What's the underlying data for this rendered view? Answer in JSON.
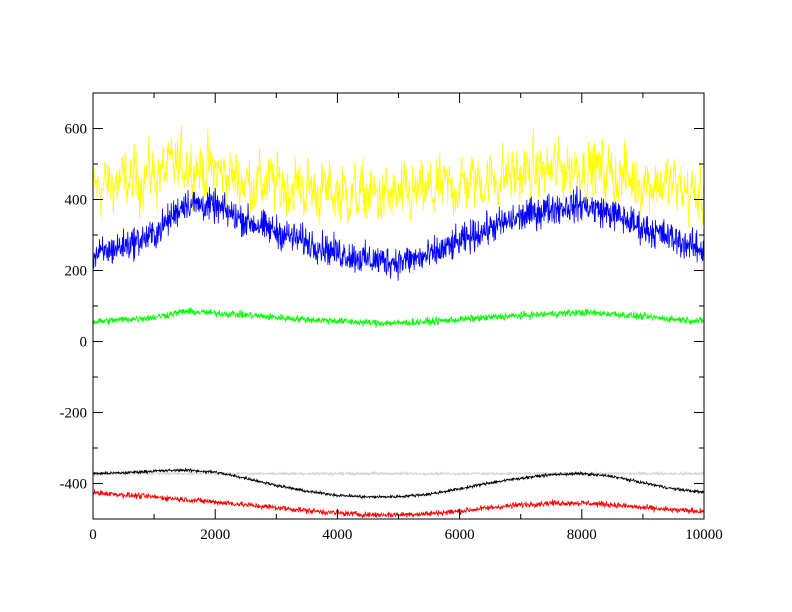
{
  "chart_data": {
    "type": "line",
    "title": "",
    "xlabel": "",
    "ylabel": "",
    "xlim": [
      0,
      10000
    ],
    "ylim": [
      -500,
      700
    ],
    "grid": false,
    "legend": "none",
    "x_ticks": [
      0,
      2000,
      4000,
      6000,
      8000,
      10000
    ],
    "y_ticks": [
      -400,
      -200,
      0,
      200,
      400,
      600
    ],
    "x_tick_labels": [
      "0",
      "2000",
      "4000",
      "6000",
      "8000",
      "10000"
    ],
    "y_tick_labels": [
      "-400",
      "-200",
      "0",
      "200",
      "400",
      "600"
    ],
    "x_minor_step": 1000,
    "y_minor_step": 100,
    "series": [
      {
        "color": "#ffff00",
        "noise": 55,
        "x": [
          0,
          500,
          1000,
          1500,
          2000,
          2500,
          3000,
          3500,
          4000,
          4500,
          5000,
          5500,
          6000,
          6500,
          7000,
          7500,
          8000,
          8500,
          9000,
          9500,
          10000
        ],
        "y": [
          430,
          450,
          470,
          500,
          480,
          450,
          440,
          430,
          420,
          410,
          405,
          420,
          440,
          460,
          470,
          480,
          490,
          470,
          450,
          440,
          400
        ]
      },
      {
        "color": "#0000ff",
        "noise": 22,
        "x": [
          0,
          500,
          1000,
          1500,
          2000,
          2500,
          3000,
          3500,
          4000,
          4500,
          5000,
          5500,
          6000,
          6500,
          7000,
          7500,
          8000,
          8500,
          9000,
          9500,
          10000
        ],
        "y": [
          240,
          270,
          300,
          390,
          380,
          340,
          310,
          280,
          250,
          230,
          225,
          240,
          280,
          320,
          350,
          375,
          385,
          360,
          320,
          290,
          255
        ]
      },
      {
        "color": "#00ff00",
        "noise": 5,
        "x": [
          0,
          500,
          1000,
          1500,
          2000,
          2500,
          3000,
          3500,
          4000,
          4500,
          5000,
          5500,
          6000,
          6500,
          7000,
          7500,
          8000,
          8500,
          9000,
          9500,
          10000
        ],
        "y": [
          55,
          62,
          68,
          85,
          80,
          75,
          68,
          62,
          58,
          53,
          52,
          56,
          62,
          68,
          73,
          78,
          82,
          78,
          70,
          63,
          57
        ]
      },
      {
        "color": "#d3d3d3",
        "noise": 2,
        "x": [
          0,
          10000
        ],
        "y": [
          -372,
          -372
        ]
      },
      {
        "color": "#000000",
        "noise": 2,
        "x": [
          0,
          500,
          1000,
          1500,
          2000,
          2500,
          3000,
          3500,
          4000,
          4500,
          5000,
          5500,
          6000,
          6500,
          7000,
          7500,
          8000,
          8500,
          9000,
          9500,
          10000
        ],
        "y": [
          -372,
          -370,
          -365,
          -362,
          -368,
          -385,
          -405,
          -422,
          -433,
          -438,
          -437,
          -430,
          -415,
          -398,
          -385,
          -375,
          -372,
          -380,
          -398,
          -415,
          -425
        ]
      },
      {
        "color": "#ff0000",
        "noise": 4,
        "x": [
          0,
          500,
          1000,
          1500,
          2000,
          2500,
          3000,
          3500,
          4000,
          4500,
          5000,
          5500,
          6000,
          6500,
          7000,
          7500,
          8000,
          8500,
          9000,
          9500,
          10000
        ],
        "y": [
          -425,
          -432,
          -438,
          -445,
          -452,
          -460,
          -468,
          -476,
          -483,
          -488,
          -488,
          -485,
          -478,
          -468,
          -460,
          -455,
          -455,
          -460,
          -468,
          -475,
          -478
        ]
      }
    ]
  }
}
